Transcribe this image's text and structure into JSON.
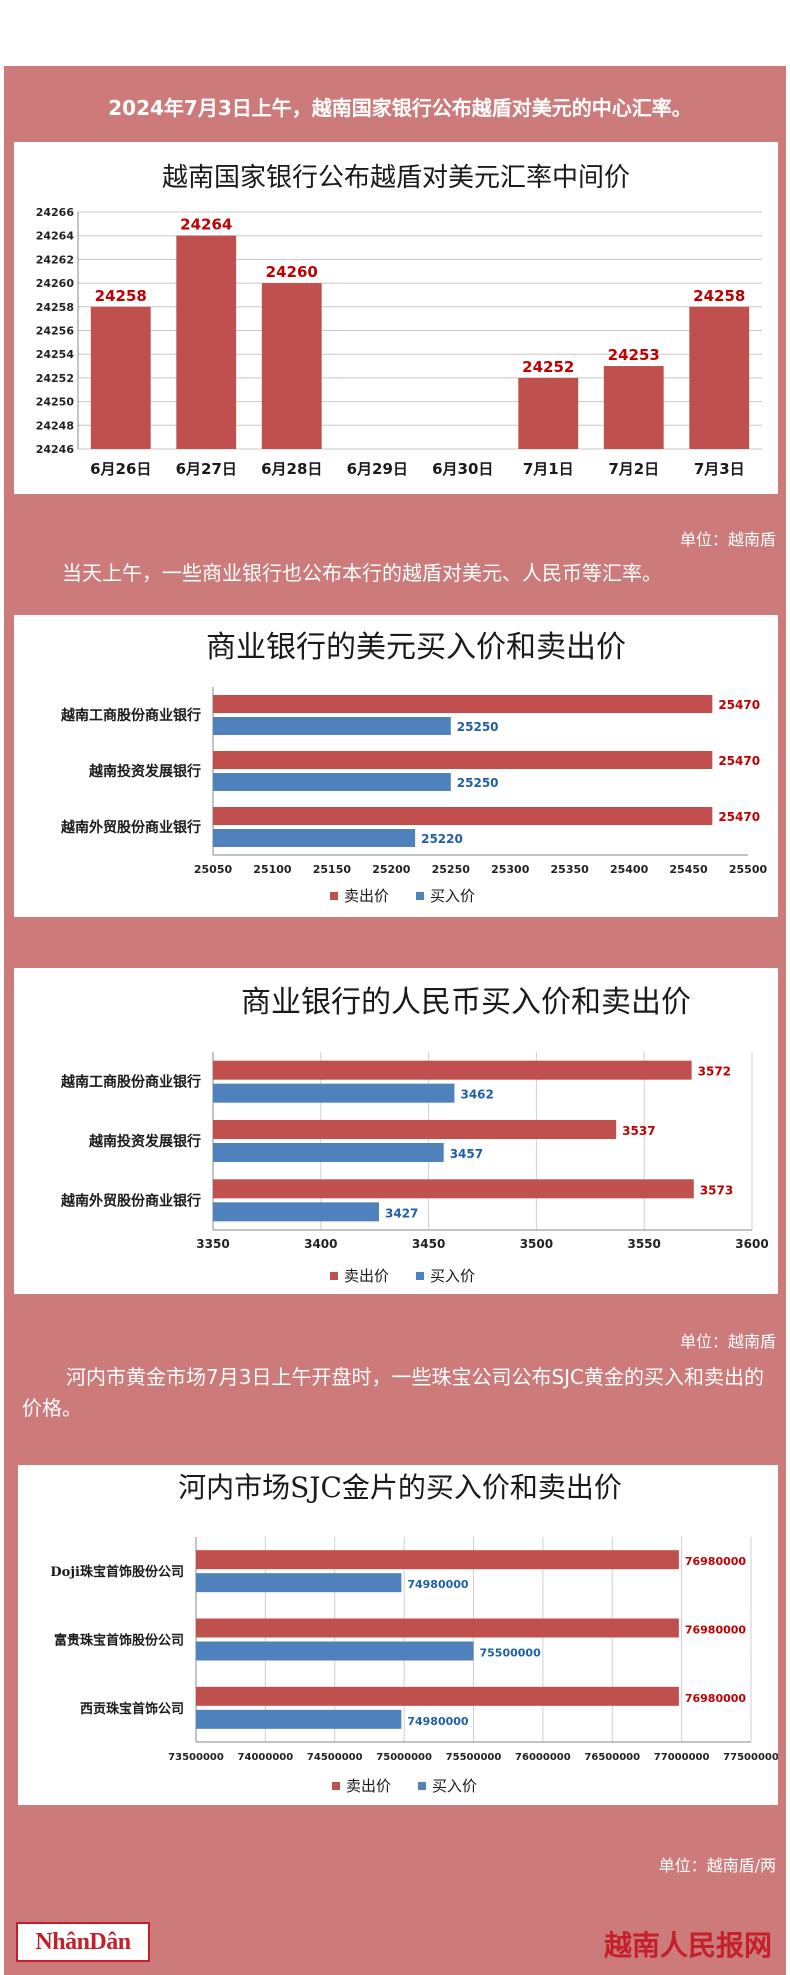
{
  "colors": {
    "red": "#c0504d",
    "blue": "#4f81bd",
    "bg": "#cd7b7a",
    "red_label": "#c00000",
    "blue_label": "#1f5fa8"
  },
  "headline": "2024年7月3日上午，越南国家银行公布越盾对美元的中心汇率。",
  "unit_vnd": "单位：越南盾",
  "intro_banks": "当天上午，一些商业银行也公布本行的越盾对美元、人民币等汇率。",
  "unit_vnd_2": "单位：越南盾",
  "intro_gold": "河内市黄金市场7月3日上午开盘时，一些珠宝公司公布SJC黄金的买入和卖出的价格。",
  "unit_gold": "单位：越南盾/两",
  "footer": {
    "logo_left": "NhânDân",
    "logo_right": "越南人民报网"
  },
  "chart_data": [
    {
      "type": "bar",
      "title": "越南国家银行公布越盾对美元汇率中间价",
      "categories": [
        "6月26日",
        "6月27日",
        "6月28日",
        "6月29日",
        "6月30日",
        "7月1日",
        "7月2日",
        "7月3日"
      ],
      "values": [
        24258,
        24264,
        24260,
        null,
        null,
        24252,
        24253,
        24258
      ],
      "value_labels": [
        "24258",
        "24264",
        "24260",
        "",
        "",
        "24252",
        "24253",
        "24258"
      ],
      "ylim": [
        24246,
        24266
      ],
      "yticks": [
        "24246",
        "24248",
        "24250",
        "24252",
        "24254",
        "24256",
        "24258",
        "24260",
        "24262",
        "24264",
        "24266"
      ],
      "grid": true,
      "legend": "none"
    },
    {
      "type": "bar",
      "orientation": "horizontal",
      "title": "商业银行的美元买入价和卖出价",
      "categories": [
        "越南工商股份商业银行",
        "越南投资发展银行",
        "越南外贸股份商业银行"
      ],
      "series": [
        {
          "name": "卖出价",
          "values": [
            25470,
            25470,
            25470
          ],
          "labels": [
            "25470",
            "25470",
            "25470"
          ]
        },
        {
          "name": "买入价",
          "values": [
            25250,
            25250,
            25220
          ],
          "labels": [
            "25250",
            "25250",
            "25220"
          ]
        }
      ],
      "xlim": [
        25050,
        25500
      ],
      "xticks": [
        "25050",
        "25100",
        "25150",
        "25200",
        "25250",
        "25300",
        "25350",
        "25400",
        "25450",
        "25500"
      ],
      "grid": false,
      "legend": "bottom"
    },
    {
      "type": "bar",
      "orientation": "horizontal",
      "title": "商业银行的人民币买入价和卖出价",
      "categories": [
        "越南工商股份商业银行",
        "越南投资发展银行",
        "越南外贸股份商业银行"
      ],
      "series": [
        {
          "name": "卖出价",
          "values": [
            3572,
            3537,
            3573
          ],
          "labels": [
            "3572",
            "3537",
            "3573"
          ]
        },
        {
          "name": "买入价",
          "values": [
            3462,
            3457,
            3427
          ],
          "labels": [
            "3462",
            "3457",
            "3427"
          ]
        }
      ],
      "xlim": [
        3350,
        3600
      ],
      "xticks": [
        "3350",
        "3400",
        "3450",
        "3500",
        "3550",
        "3600"
      ],
      "grid": true,
      "legend": "bottom"
    },
    {
      "type": "bar",
      "orientation": "horizontal",
      "title": "河内市场SJC金片的买入价和卖出价",
      "categories": [
        "Doji珠宝首饰股份公司",
        "富贵珠宝首饰股份公司",
        "西贡珠宝首饰公司"
      ],
      "series": [
        {
          "name": "卖出价",
          "values": [
            76980000,
            76980000,
            76980000
          ],
          "labels": [
            "76980000",
            "76980000",
            "76980000"
          ]
        },
        {
          "name": "买入价",
          "values": [
            74980000,
            75500000,
            74980000
          ],
          "labels": [
            "74980000",
            "75500000",
            "74980000"
          ]
        }
      ],
      "xlim": [
        73500000,
        77500000
      ],
      "xticks": [
        "73500000",
        "74000000",
        "74500000",
        "75000000",
        "75500000",
        "76000000",
        "76500000",
        "77000000",
        "77500000"
      ],
      "grid": true,
      "legend": "bottom"
    }
  ]
}
